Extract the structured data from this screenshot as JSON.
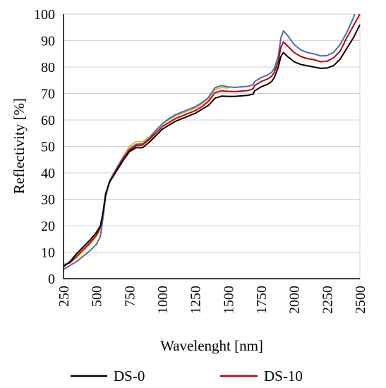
{
  "chart_data": {
    "type": "line",
    "title": "",
    "xlabel": "Wavelenght [nm]",
    "ylabel": "Reflectivity [%]",
    "xlim": [
      250,
      2500
    ],
    "ylim": [
      0,
      100
    ],
    "xticks": [
      "250",
      "500",
      "750",
      "1000",
      "1250",
      "1500",
      "1750",
      "2000",
      "2250",
      "2500"
    ],
    "yticks": [
      "0",
      "10",
      "20",
      "30",
      "40",
      "50",
      "60",
      "70",
      "80",
      "90",
      "100"
    ],
    "grid": "horizontal",
    "legend_position": "bottom",
    "series": [
      {
        "name": "DS-0",
        "color": "#000000",
        "in_legend": true,
        "points": [
          [
            250,
            4.5
          ],
          [
            300,
            6.5
          ],
          [
            350,
            9.5
          ],
          [
            400,
            12
          ],
          [
            450,
            14.5
          ],
          [
            500,
            17.5
          ],
          [
            530,
            20
          ],
          [
            550,
            25
          ],
          [
            570,
            32
          ],
          [
            600,
            36.5
          ],
          [
            650,
            40.5
          ],
          [
            700,
            44.5
          ],
          [
            750,
            48
          ],
          [
            800,
            49.5
          ],
          [
            850,
            49.5
          ],
          [
            900,
            51.5
          ],
          [
            950,
            54
          ],
          [
            1000,
            56.5
          ],
          [
            1050,
            58
          ],
          [
            1100,
            59.5
          ],
          [
            1150,
            60.5
          ],
          [
            1200,
            61.5
          ],
          [
            1250,
            62.5
          ],
          [
            1300,
            64
          ],
          [
            1350,
            65.5
          ],
          [
            1400,
            68.2
          ],
          [
            1450,
            69
          ],
          [
            1500,
            68.9
          ],
          [
            1550,
            68.9
          ],
          [
            1600,
            69.1
          ],
          [
            1650,
            69.3
          ],
          [
            1690,
            69.8
          ],
          [
            1700,
            71
          ],
          [
            1750,
            72.5
          ],
          [
            1800,
            73.5
          ],
          [
            1830,
            74.5
          ],
          [
            1850,
            76
          ],
          [
            1880,
            80
          ],
          [
            1900,
            84
          ],
          [
            1920,
            85.5
          ],
          [
            1950,
            84
          ],
          [
            2000,
            82
          ],
          [
            2050,
            81
          ],
          [
            2100,
            80.5
          ],
          [
            2150,
            80
          ],
          [
            2200,
            79.5
          ],
          [
            2250,
            79.6
          ],
          [
            2300,
            80.5
          ],
          [
            2350,
            83
          ],
          [
            2400,
            87
          ],
          [
            2450,
            91
          ],
          [
            2500,
            96
          ]
        ]
      },
      {
        "name": "DS-10",
        "color": "#c00000",
        "in_legend": true,
        "points": [
          [
            250,
            5
          ],
          [
            300,
            6
          ],
          [
            350,
            8.5
          ],
          [
            400,
            11
          ],
          [
            450,
            13.5
          ],
          [
            500,
            16.5
          ],
          [
            530,
            19.5
          ],
          [
            550,
            25
          ],
          [
            570,
            32
          ],
          [
            600,
            36.5
          ],
          [
            650,
            41
          ],
          [
            700,
            45
          ],
          [
            750,
            48.5
          ],
          [
            800,
            50.3
          ],
          [
            850,
            50.5
          ],
          [
            900,
            52.5
          ],
          [
            950,
            55
          ],
          [
            1000,
            57.5
          ],
          [
            1050,
            59
          ],
          [
            1100,
            60.5
          ],
          [
            1150,
            61.5
          ],
          [
            1200,
            62.5
          ],
          [
            1250,
            63.5
          ],
          [
            1300,
            65
          ],
          [
            1350,
            67
          ],
          [
            1400,
            70.3
          ],
          [
            1450,
            71
          ],
          [
            1500,
            70.8
          ],
          [
            1550,
            70.7
          ],
          [
            1600,
            70.9
          ],
          [
            1650,
            71.1
          ],
          [
            1690,
            71.8
          ],
          [
            1700,
            73
          ],
          [
            1750,
            74.5
          ],
          [
            1800,
            75.5
          ],
          [
            1830,
            76.5
          ],
          [
            1850,
            78
          ],
          [
            1880,
            82
          ],
          [
            1900,
            87.5
          ],
          [
            1920,
            89.5
          ],
          [
            1950,
            88
          ],
          [
            2000,
            85.5
          ],
          [
            2050,
            84
          ],
          [
            2100,
            83.2
          ],
          [
            2150,
            82.8
          ],
          [
            2200,
            82
          ],
          [
            2250,
            82.2
          ],
          [
            2300,
            83.5
          ],
          [
            2350,
            86
          ],
          [
            2400,
            91
          ],
          [
            2450,
            95.5
          ],
          [
            2500,
            100
          ]
        ]
      },
      {
        "name": "",
        "color": "#f2b22d",
        "in_legend": false,
        "points": [
          [
            250,
            5.5
          ],
          [
            300,
            6
          ],
          [
            350,
            8
          ],
          [
            400,
            10.5
          ],
          [
            450,
            13
          ],
          [
            500,
            16
          ],
          [
            530,
            19
          ],
          [
            550,
            25
          ],
          [
            570,
            32
          ],
          [
            600,
            37
          ],
          [
            650,
            41.5
          ],
          [
            700,
            46
          ],
          [
            750,
            50
          ],
          [
            800,
            51.8
          ],
          [
            850,
            51.8
          ],
          [
            900,
            53.5
          ],
          [
            950,
            56
          ],
          [
            1000,
            58.5
          ],
          [
            1050,
            60
          ],
          [
            1100,
            61.5
          ],
          [
            1150,
            62.5
          ],
          [
            1200,
            63.5
          ],
          [
            1250,
            64.5
          ],
          [
            1300,
            66
          ],
          [
            1350,
            68
          ],
          [
            1400,
            71.5
          ],
          [
            1450,
            72.3
          ],
          [
            1500,
            72
          ]
        ]
      },
      {
        "name": "",
        "color": "#4a6fa5",
        "in_legend": false,
        "points": [
          [
            250,
            3.5
          ],
          [
            300,
            5
          ],
          [
            350,
            6.5
          ],
          [
            400,
            8.5
          ],
          [
            450,
            10.5
          ],
          [
            500,
            13
          ],
          [
            530,
            16
          ],
          [
            550,
            23
          ],
          [
            570,
            31
          ],
          [
            600,
            37
          ],
          [
            650,
            41.5
          ],
          [
            700,
            45.5
          ],
          [
            750,
            49
          ],
          [
            800,
            50.8
          ],
          [
            850,
            51
          ],
          [
            900,
            53
          ],
          [
            950,
            56
          ],
          [
            1000,
            58.5
          ],
          [
            1050,
            60.5
          ],
          [
            1100,
            62
          ],
          [
            1150,
            63
          ],
          [
            1200,
            64
          ],
          [
            1250,
            65
          ],
          [
            1300,
            66.5
          ],
          [
            1350,
            68.5
          ],
          [
            1400,
            72.2
          ],
          [
            1450,
            73
          ],
          [
            1500,
            72.5
          ],
          [
            1550,
            72.3
          ],
          [
            1600,
            72.5
          ],
          [
            1650,
            72.7
          ],
          [
            1690,
            73.3
          ],
          [
            1700,
            74.5
          ],
          [
            1750,
            76
          ],
          [
            1800,
            77
          ],
          [
            1830,
            78
          ],
          [
            1850,
            79.5
          ],
          [
            1880,
            84
          ],
          [
            1900,
            91
          ],
          [
            1920,
            93.7
          ],
          [
            1950,
            92
          ],
          [
            2000,
            88.5
          ],
          [
            2050,
            86.5
          ],
          [
            2100,
            85.5
          ],
          [
            2150,
            85
          ],
          [
            2200,
            84.2
          ],
          [
            2250,
            84.3
          ],
          [
            2300,
            85.5
          ],
          [
            2350,
            88.5
          ],
          [
            2400,
            93
          ],
          [
            2450,
            98.5
          ],
          [
            2460,
            100
          ]
        ]
      }
    ]
  }
}
